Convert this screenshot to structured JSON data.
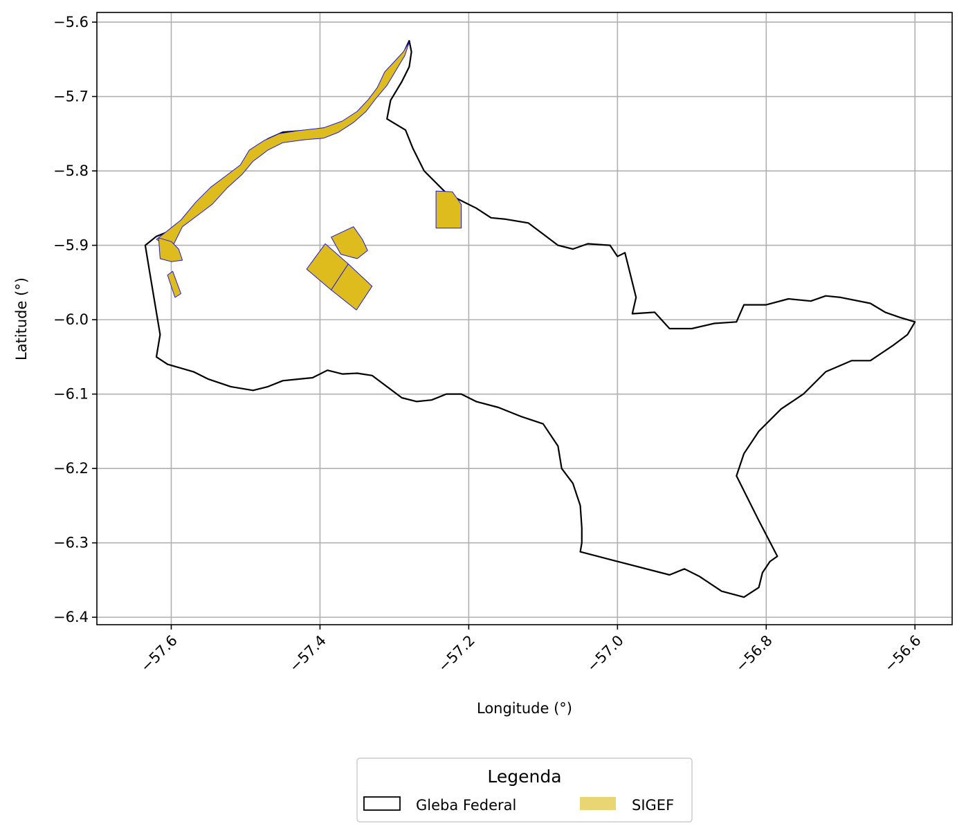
{
  "chart_data": {
    "type": "map",
    "xlabel": "Longitude (°)",
    "ylabel": "Latitude (°)",
    "xlim": [
      -57.7,
      -56.55
    ],
    "ylim": [
      -6.41,
      -5.587
    ],
    "x_ticks": [
      -57.6,
      -57.4,
      -57.2,
      -57.0,
      -56.8,
      -56.6
    ],
    "x_tick_labels": [
      "−57.6",
      "−57.4",
      "−57.2",
      "−57.0",
      "−56.8",
      "−56.6"
    ],
    "y_ticks": [
      -5.6,
      -5.7,
      -5.8,
      -5.9,
      -6.0,
      -6.1,
      -6.2,
      -6.3,
      -6.4
    ],
    "y_tick_labels": [
      "−5.6",
      "−5.7",
      "−5.8",
      "−5.9",
      "−6.0",
      "−6.1",
      "−6.2",
      "−6.3",
      "−6.4"
    ],
    "grid": true,
    "legend": {
      "title": "Legenda",
      "placement": "bottom-center",
      "entries": [
        {
          "label": "Gleba Federal",
          "style": "outline",
          "edge_color": "#000000",
          "fill": "none"
        },
        {
          "label": "SIGEF",
          "style": "fill",
          "fill": "#e8d574"
        }
      ]
    },
    "colors": {
      "gleba_edge": "#000000",
      "sigef_fill": "#dfbc1e",
      "sigef_edge": "#1a1ae6",
      "grid": "#b0b0b0"
    },
    "gleba_federal": [
      [
        -57.28,
        -5.625
      ],
      [
        -57.287,
        -5.64
      ],
      [
        -57.297,
        -5.655
      ],
      [
        -57.31,
        -5.668
      ],
      [
        -57.318,
        -5.69
      ],
      [
        -57.33,
        -5.705
      ],
      [
        -57.345,
        -5.72
      ],
      [
        -57.36,
        -5.733
      ],
      [
        -57.38,
        -5.74
      ],
      [
        -57.41,
        -5.745
      ],
      [
        -57.45,
        -5.748
      ],
      [
        -57.47,
        -5.757
      ],
      [
        -57.49,
        -5.77
      ],
      [
        -57.5,
        -5.79
      ],
      [
        -57.52,
        -5.805
      ],
      [
        -57.54,
        -5.82
      ],
      [
        -57.56,
        -5.84
      ],
      [
        -57.58,
        -5.865
      ],
      [
        -57.6,
        -5.88
      ],
      [
        -57.62,
        -5.888
      ],
      [
        -57.635,
        -5.9
      ],
      [
        -57.63,
        -5.93
      ],
      [
        -57.625,
        -5.96
      ],
      [
        -57.62,
        -5.99
      ],
      [
        -57.615,
        -6.02
      ],
      [
        -57.62,
        -6.05
      ],
      [
        -57.605,
        -6.06
      ],
      [
        -57.57,
        -6.07
      ],
      [
        -57.55,
        -6.08
      ],
      [
        -57.52,
        -6.09
      ],
      [
        -57.49,
        -6.095
      ],
      [
        -57.47,
        -6.09
      ],
      [
        -57.45,
        -6.082
      ],
      [
        -57.43,
        -6.08
      ],
      [
        -57.41,
        -6.078
      ],
      [
        -57.39,
        -6.068
      ],
      [
        -57.37,
        -6.073
      ],
      [
        -57.35,
        -6.072
      ],
      [
        -57.33,
        -6.075
      ],
      [
        -57.31,
        -6.09
      ],
      [
        -57.29,
        -6.105
      ],
      [
        -57.27,
        -6.11
      ],
      [
        -57.25,
        -6.108
      ],
      [
        -57.23,
        -6.1
      ],
      [
        -57.21,
        -6.1
      ],
      [
        -57.19,
        -6.11
      ],
      [
        -57.16,
        -6.118
      ],
      [
        -57.13,
        -6.13
      ],
      [
        -57.1,
        -6.14
      ],
      [
        -57.08,
        -6.17
      ],
      [
        -57.075,
        -6.2
      ],
      [
        -57.06,
        -6.22
      ],
      [
        -57.05,
        -6.25
      ],
      [
        -57.048,
        -6.28
      ],
      [
        -57.048,
        -6.3
      ],
      [
        -57.05,
        -6.312
      ],
      [
        -57.0,
        -6.325
      ],
      [
        -56.93,
        -6.343
      ],
      [
        -56.91,
        -6.335
      ],
      [
        -56.89,
        -6.345
      ],
      [
        -56.86,
        -6.365
      ],
      [
        -56.83,
        -6.373
      ],
      [
        -56.81,
        -6.36
      ],
      [
        -56.805,
        -6.34
      ],
      [
        -56.795,
        -6.325
      ],
      [
        -56.785,
        -6.318
      ],
      [
        -56.81,
        -6.27
      ],
      [
        -56.84,
        -6.21
      ],
      [
        -56.83,
        -6.18
      ],
      [
        -56.81,
        -6.15
      ],
      [
        -56.78,
        -6.12
      ],
      [
        -56.75,
        -6.1
      ],
      [
        -56.72,
        -6.07
      ],
      [
        -56.685,
        -6.055
      ],
      [
        -56.66,
        -6.055
      ],
      [
        -56.645,
        -6.045
      ],
      [
        -56.63,
        -6.035
      ],
      [
        -56.61,
        -6.02
      ],
      [
        -56.6,
        -6.003
      ],
      [
        -56.62,
        -5.997
      ],
      [
        -56.64,
        -5.99
      ],
      [
        -56.66,
        -5.978
      ],
      [
        -56.7,
        -5.97
      ],
      [
        -56.72,
        -5.968
      ],
      [
        -56.74,
        -5.975
      ],
      [
        -56.77,
        -5.972
      ],
      [
        -56.8,
        -5.98
      ],
      [
        -56.83,
        -5.98
      ],
      [
        -56.84,
        -6.003
      ],
      [
        -56.87,
        -6.005
      ],
      [
        -56.9,
        -6.012
      ],
      [
        -56.93,
        -6.012
      ],
      [
        -56.95,
        -5.99
      ],
      [
        -56.98,
        -5.992
      ],
      [
        -56.975,
        -5.97
      ],
      [
        -56.985,
        -5.93
      ],
      [
        -56.99,
        -5.91
      ],
      [
        -57.0,
        -5.915
      ],
      [
        -57.01,
        -5.9
      ],
      [
        -57.04,
        -5.898
      ],
      [
        -57.06,
        -5.905
      ],
      [
        -57.08,
        -5.9
      ],
      [
        -57.1,
        -5.885
      ],
      [
        -57.12,
        -5.87
      ],
      [
        -57.15,
        -5.865
      ],
      [
        -57.17,
        -5.863
      ],
      [
        -57.19,
        -5.85
      ],
      [
        -57.21,
        -5.84
      ],
      [
        -57.23,
        -5.83
      ],
      [
        -57.26,
        -5.8
      ],
      [
        -57.275,
        -5.77
      ],
      [
        -57.285,
        -5.745
      ],
      [
        -57.31,
        -5.73
      ],
      [
        -57.305,
        -5.705
      ],
      [
        -57.29,
        -5.68
      ],
      [
        -57.28,
        -5.66
      ],
      [
        -57.277,
        -5.64
      ],
      [
        -57.28,
        -5.625
      ]
    ],
    "sigef": [
      {
        "label": "SIGEF",
        "polygon": [
          [
            -57.28,
            -5.627
          ],
          [
            -57.288,
            -5.64
          ],
          [
            -57.3,
            -5.653
          ],
          [
            -57.313,
            -5.667
          ],
          [
            -57.323,
            -5.688
          ],
          [
            -57.335,
            -5.704
          ],
          [
            -57.35,
            -5.72
          ],
          [
            -57.37,
            -5.733
          ],
          [
            -57.395,
            -5.742
          ],
          [
            -57.43,
            -5.746
          ],
          [
            -57.455,
            -5.75
          ],
          [
            -57.475,
            -5.759
          ],
          [
            -57.495,
            -5.772
          ],
          [
            -57.507,
            -5.792
          ],
          [
            -57.527,
            -5.807
          ],
          [
            -57.547,
            -5.822
          ],
          [
            -57.567,
            -5.842
          ],
          [
            -57.587,
            -5.866
          ],
          [
            -57.607,
            -5.882
          ],
          [
            -57.62,
            -5.892
          ],
          [
            -57.6,
            -5.905
          ],
          [
            -57.585,
            -5.875
          ],
          [
            -57.565,
            -5.86
          ],
          [
            -57.545,
            -5.845
          ],
          [
            -57.525,
            -5.823
          ],
          [
            -57.505,
            -5.805
          ],
          [
            -57.49,
            -5.787
          ],
          [
            -57.47,
            -5.772
          ],
          [
            -57.45,
            -5.762
          ],
          [
            -57.42,
            -5.758
          ],
          [
            -57.395,
            -5.756
          ],
          [
            -57.375,
            -5.748
          ],
          [
            -57.355,
            -5.735
          ],
          [
            -57.338,
            -5.72
          ],
          [
            -57.325,
            -5.703
          ],
          [
            -57.31,
            -5.685
          ],
          [
            -57.298,
            -5.665
          ],
          [
            -57.286,
            -5.645
          ]
        ]
      },
      {
        "label": "SIGEF",
        "polygon": [
          [
            -57.617,
            -5.89
          ],
          [
            -57.6,
            -5.895
          ],
          [
            -57.59,
            -5.905
          ],
          [
            -57.585,
            -5.92
          ],
          [
            -57.6,
            -5.922
          ],
          [
            -57.615,
            -5.918
          ]
        ]
      },
      {
        "label": "SIGEF",
        "polygon": [
          [
            -57.605,
            -5.94
          ],
          [
            -57.598,
            -5.935
          ],
          [
            -57.587,
            -5.965
          ],
          [
            -57.595,
            -5.97
          ]
        ]
      },
      {
        "label": "SIGEF",
        "polygon": [
          [
            -57.222,
            -5.828
          ],
          [
            -57.244,
            -5.827
          ],
          [
            -57.244,
            -5.877
          ],
          [
            -57.21,
            -5.877
          ],
          [
            -57.21,
            -5.845
          ]
        ]
      },
      {
        "label": "SIGEF",
        "polygon": [
          [
            -57.385,
            -5.889
          ],
          [
            -57.355,
            -5.875
          ],
          [
            -57.343,
            -5.892
          ],
          [
            -57.336,
            -5.907
          ],
          [
            -57.35,
            -5.918
          ],
          [
            -57.372,
            -5.912
          ]
        ]
      },
      {
        "label": "SIGEF",
        "polygon": [
          [
            -57.393,
            -5.898
          ],
          [
            -57.418,
            -5.932
          ],
          [
            -57.385,
            -5.96
          ],
          [
            -57.362,
            -5.925
          ]
        ]
      },
      {
        "label": "SIGEF",
        "polygon": [
          [
            -57.362,
            -5.925
          ],
          [
            -57.385,
            -5.96
          ],
          [
            -57.351,
            -5.987
          ],
          [
            -57.33,
            -5.955
          ]
        ]
      }
    ]
  }
}
